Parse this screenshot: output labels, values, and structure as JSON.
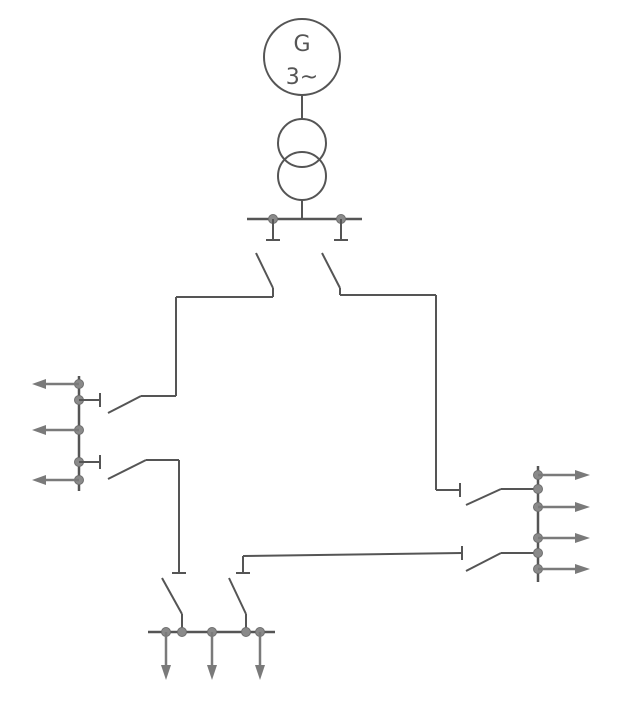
{
  "generator": {
    "letter": "G",
    "phases": "3~"
  },
  "colors": {
    "line": "#555555",
    "node": "#8a8a8a",
    "arrow": "#7a7a7a"
  }
}
